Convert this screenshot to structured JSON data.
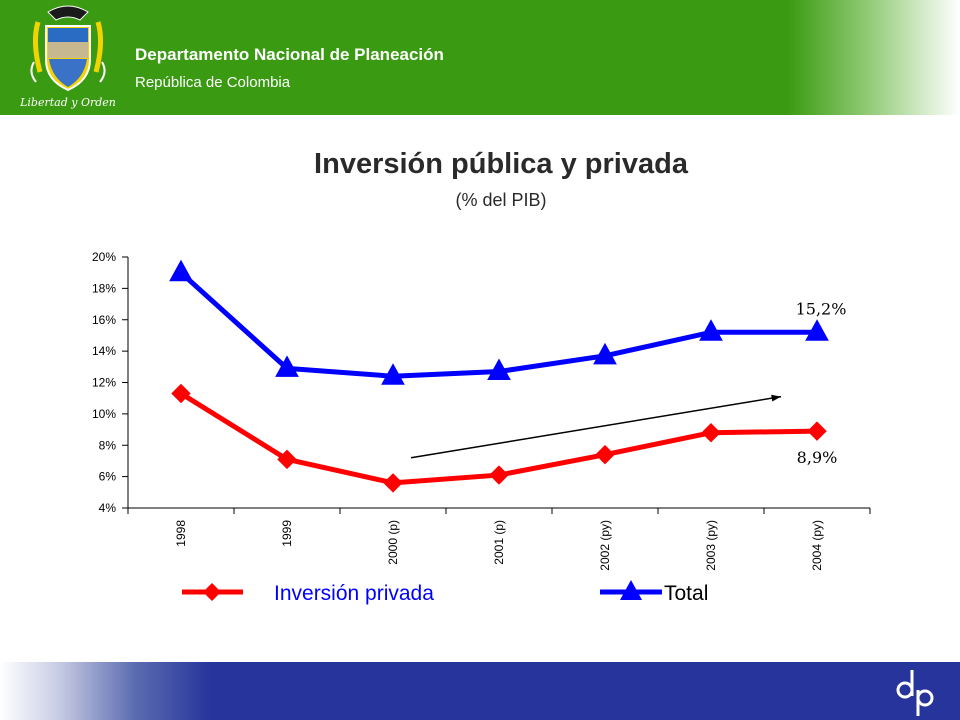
{
  "header": {
    "logo_caption": "Libertad y Orden",
    "org_name": "Departamento Nacional de Planeación",
    "org_sub": "República de Colombia",
    "background": "#3a9a12"
  },
  "slide": {
    "title": "Inversión pública y privada",
    "subtitle": "(% del PIB)"
  },
  "chart_data": {
    "type": "line",
    "categories": [
      "1998",
      "1999",
      "2000 (p)",
      "2001 (p)",
      "2002 (py)",
      "2003 (py)",
      "2004 (py)"
    ],
    "series": [
      {
        "name": "Inversión privada",
        "values": [
          11.3,
          7.1,
          5.6,
          6.1,
          7.4,
          8.8,
          8.9
        ],
        "color": "#ff0000",
        "marker": "diamond"
      },
      {
        "name": "Total",
        "values": [
          19.0,
          12.9,
          12.4,
          12.7,
          13.7,
          15.2,
          15.2
        ],
        "color": "#0000ff",
        "marker": "triangle"
      }
    ],
    "ylim": [
      4,
      20
    ],
    "yticks": [
      {
        "v": 4,
        "label": "4%"
      },
      {
        "v": 6,
        "label": "6%"
      },
      {
        "v": 8,
        "label": "8%"
      },
      {
        "v": 10,
        "label": "10%"
      },
      {
        "v": 12,
        "label": "12%"
      },
      {
        "v": 14,
        "label": "14%"
      },
      {
        "v": 16,
        "label": "16%"
      },
      {
        "v": 18,
        "label": "18%"
      },
      {
        "v": 20,
        "label": "20%"
      }
    ],
    "annotations": [
      "15,2%",
      "8,9%"
    ],
    "trend_arrow": {
      "from": {
        "x": "2000 (p)",
        "y": 7.2
      },
      "to": {
        "x": "2004 (py)",
        "y": 11.1
      }
    },
    "legend_placement": "bottom",
    "grid": false
  },
  "footer": {
    "background": "#26349c"
  }
}
